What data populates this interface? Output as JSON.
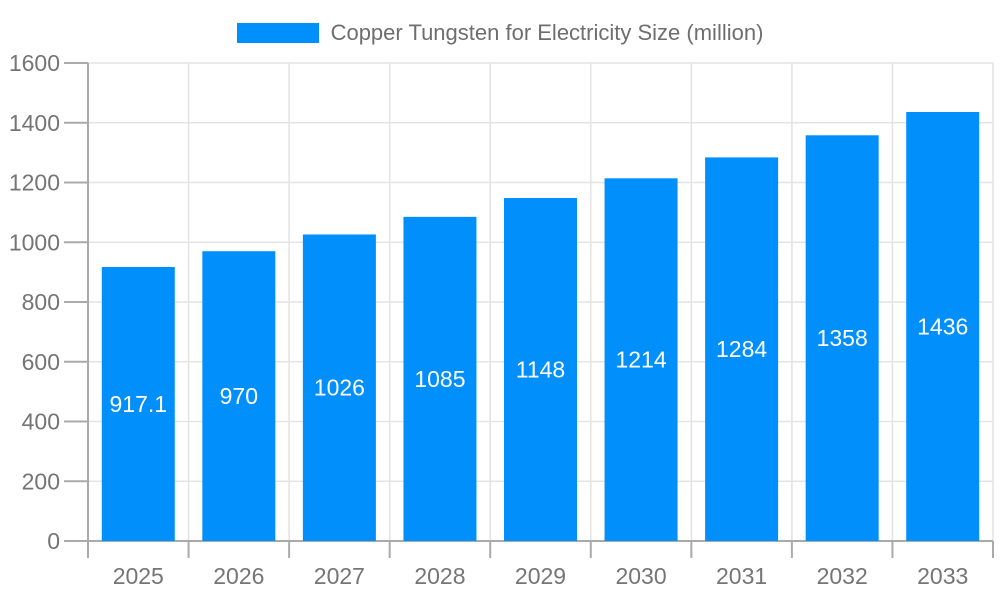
{
  "legend": {
    "label": "Copper Tungsten for Electricity Size (million)"
  },
  "chart_data": {
    "type": "bar",
    "title": "Copper Tungsten for Electricity Size (million)",
    "categories": [
      "2025",
      "2026",
      "2027",
      "2028",
      "2029",
      "2030",
      "2031",
      "2032",
      "2033"
    ],
    "series": [
      {
        "name": "Copper Tungsten for Electricity Size (million)",
        "values": [
          917.1,
          970,
          1026,
          1085,
          1148,
          1214,
          1284,
          1358,
          1436
        ]
      }
    ],
    "bar_value_labels": [
      "917.1",
      "970",
      "1026",
      "1085",
      "1148",
      "1214",
      "1284",
      "1358",
      "1436"
    ],
    "xlabel": "",
    "ylabel": "",
    "ylim": [
      0,
      1600
    ],
    "ytick_step": 200,
    "ytick_labels": [
      "0",
      "200",
      "400",
      "600",
      "800",
      "1000",
      "1200",
      "1400",
      "1600"
    ],
    "grid": true,
    "legend_position": "top-center",
    "bar_labels_inside": true,
    "colors": {
      "bar": "#008ffb",
      "grid": "#e4e4e4",
      "axis": "#aaaaaa",
      "tick_label": "#757575",
      "bar_label": "#ffffff",
      "legend_text": "#6e6e6e",
      "background": "#ffffff"
    }
  }
}
